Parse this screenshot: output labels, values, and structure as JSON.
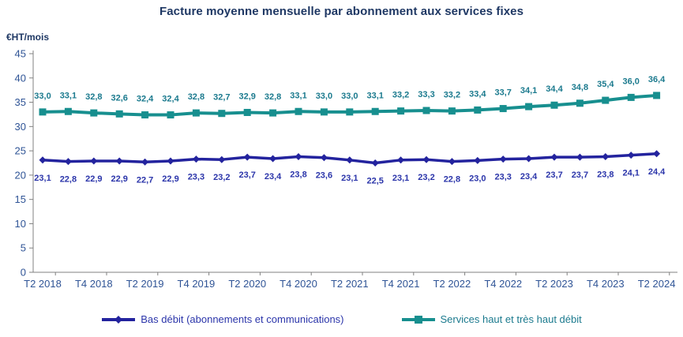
{
  "chart_data": {
    "type": "line",
    "title": "Facture moyenne mensuelle par abonnement aux services fixes",
    "y_axis_unit_label": "€HT/mois",
    "ylim": [
      0,
      45
    ],
    "ytick_step": 5,
    "ytick_labels": [
      "0",
      "5",
      "10",
      "15",
      "20",
      "25",
      "30",
      "35",
      "40",
      "45"
    ],
    "x_tick_labels": [
      "T2 2018",
      "T4 2018",
      "T2 2019",
      "T4 2019",
      "T2 2020",
      "T4 2020",
      "T2 2021",
      "T4 2021",
      "T2 2022",
      "T4 2022",
      "T2 2023",
      "T4 2023",
      "T2 2024"
    ],
    "x_label_interval": 2,
    "grid": false,
    "legend_position": "bottom",
    "series": [
      {
        "name": "Bas débit (abonnements et communications)",
        "color": "#23239E",
        "label_color": "#2B35AA",
        "marker": "diamond",
        "label_position": "below",
        "values": [
          23.1,
          22.8,
          22.9,
          22.9,
          22.7,
          22.9,
          23.3,
          23.2,
          23.7,
          23.4,
          23.8,
          23.6,
          23.1,
          22.5,
          23.1,
          23.2,
          22.8,
          23.0,
          23.3,
          23.4,
          23.7,
          23.7,
          23.8,
          24.1,
          24.4
        ],
        "value_labels": [
          "23,1",
          "22,8",
          "22,9",
          "22,9",
          "22,7",
          "22,9",
          "23,3",
          "23,2",
          "23,7",
          "23,4",
          "23,8",
          "23,6",
          "23,1",
          "22,5",
          "23,1",
          "23,2",
          "22,8",
          "23,0",
          "23,3",
          "23,4",
          "23,7",
          "23,7",
          "23,8",
          "24,1",
          "24,4"
        ]
      },
      {
        "name": "Services haut et très haut débit",
        "color": "#178F8F",
        "label_color": "#1B7A8E",
        "marker": "square",
        "label_position": "above",
        "values": [
          33.0,
          33.1,
          32.8,
          32.6,
          32.4,
          32.4,
          32.8,
          32.7,
          32.9,
          32.8,
          33.1,
          33.0,
          33.0,
          33.1,
          33.2,
          33.3,
          33.2,
          33.4,
          33.7,
          34.1,
          34.4,
          34.8,
          35.4,
          36.0,
          36.4
        ],
        "value_labels": [
          "33,0",
          "33,1",
          "32,8",
          "32,6",
          "32,4",
          "32,4",
          "32,8",
          "32,7",
          "32,9",
          "32,8",
          "33,1",
          "33,0",
          "33,0",
          "33,1",
          "33,2",
          "33,3",
          "33,2",
          "33,4",
          "33,7",
          "34,1",
          "34,4",
          "34,8",
          "35,4",
          "36,0",
          "36,4"
        ]
      }
    ]
  },
  "colors": {
    "background": "#FFFFFF",
    "title": "#1F3864",
    "axis_labels": "#2F5496",
    "axis_line": "#808080",
    "series_bas_debit": "#23239E",
    "series_haut_debit": "#178F8F"
  }
}
